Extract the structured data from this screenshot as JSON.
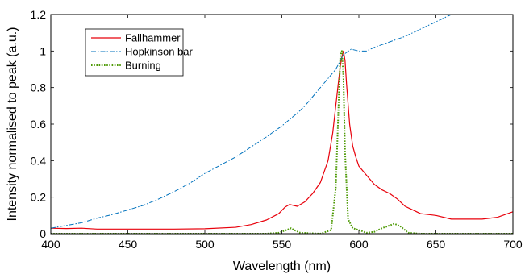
{
  "chart_data": {
    "type": "line",
    "title": "",
    "xlabel": "Wavelength (nm)",
    "ylabel": "Intensity normalised to peak (a.u.)",
    "xlim": [
      400,
      700
    ],
    "ylim": [
      0,
      1.2
    ],
    "xticks": [
      400,
      450,
      500,
      550,
      600,
      650,
      700
    ],
    "yticks": [
      0,
      0.2,
      0.4,
      0.6,
      0.8,
      1,
      1.2
    ],
    "xtick_labels": [
      "400",
      "450",
      "500",
      "550",
      "600",
      "650",
      "700"
    ],
    "ytick_labels": [
      "0",
      "0.2",
      "0.4",
      "0.6",
      "0.8",
      "1",
      "1.2"
    ],
    "grid": false,
    "legend_position": "top-left",
    "series": [
      {
        "name": "Fallhammer",
        "color": "#e8000b",
        "style": "solid",
        "x": [
          400,
          410,
          420,
          430,
          440,
          460,
          480,
          500,
          520,
          530,
          540,
          548,
          552,
          555,
          560,
          565,
          570,
          575,
          580,
          583,
          585,
          587,
          588,
          589,
          590,
          591,
          592,
          594,
          596,
          598,
          600,
          605,
          610,
          615,
          620,
          625,
          630,
          640,
          650,
          660,
          670,
          680,
          690,
          700
        ],
        "y": [
          0.03,
          0.028,
          0.03,
          0.025,
          0.025,
          0.025,
          0.025,
          0.027,
          0.035,
          0.05,
          0.075,
          0.11,
          0.145,
          0.16,
          0.15,
          0.175,
          0.22,
          0.28,
          0.4,
          0.55,
          0.7,
          0.85,
          0.92,
          0.97,
          1.0,
          0.95,
          0.82,
          0.6,
          0.48,
          0.42,
          0.37,
          0.32,
          0.27,
          0.24,
          0.22,
          0.19,
          0.15,
          0.11,
          0.1,
          0.08,
          0.08,
          0.08,
          0.09,
          0.12
        ]
      },
      {
        "name": "Hopkinson bar",
        "color": "#0072bd",
        "style": "dashdot",
        "x": [
          400,
          410,
          420,
          430,
          440,
          450,
          460,
          470,
          480,
          490,
          500,
          510,
          520,
          530,
          540,
          550,
          560,
          565,
          570,
          575,
          580,
          585,
          590,
          595,
          600,
          605,
          610,
          620,
          630,
          640,
          650,
          660
        ],
        "y": [
          0.03,
          0.045,
          0.06,
          0.085,
          0.105,
          0.13,
          0.155,
          0.19,
          0.23,
          0.275,
          0.33,
          0.375,
          0.42,
          0.475,
          0.53,
          0.59,
          0.66,
          0.7,
          0.75,
          0.8,
          0.85,
          0.9,
          0.98,
          1.01,
          1.0,
          1.0,
          1.02,
          1.05,
          1.08,
          1.12,
          1.16,
          1.2
        ]
      },
      {
        "name": "Burning",
        "color": "#4e9a06",
        "style": "dotted",
        "x": [
          400,
          540,
          548,
          553,
          556,
          558,
          562,
          575,
          582,
          585,
          587,
          588,
          589,
          590,
          591,
          593,
          596,
          600,
          605,
          610,
          615,
          620,
          623,
          627,
          632,
          640,
          700
        ],
        "y": [
          0,
          0,
          0.005,
          0.02,
          0.03,
          0.02,
          0.005,
          0,
          0.02,
          0.25,
          0.75,
          0.98,
          1.0,
          0.85,
          0.45,
          0.08,
          0.03,
          0.02,
          0.005,
          0.01,
          0.03,
          0.045,
          0.055,
          0.04,
          0.005,
          0,
          0
        ]
      }
    ]
  }
}
